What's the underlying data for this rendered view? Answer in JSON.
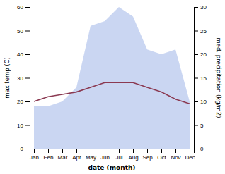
{
  "chart_data": {
    "type": "line",
    "categories": [
      "Jan",
      "Feb",
      "Mar",
      "Apr",
      "May",
      "Jun",
      "Jul",
      "Aug",
      "Sep",
      "Oct",
      "Nov",
      "Dec"
    ],
    "xlabel": "date (month)",
    "ylabel": "max temp (C)",
    "y2label": "med. precipitation (kg/m2)",
    "ylim": [
      0,
      60
    ],
    "yticks": [
      0,
      10,
      20,
      30,
      40,
      50,
      60
    ],
    "y2lim": [
      0,
      30
    ],
    "y2ticks": [
      0,
      5,
      10,
      15,
      20,
      25,
      30
    ],
    "grid": false,
    "series": [
      {
        "type": "area",
        "axis": "y2",
        "color": "#b8c8ee",
        "values": [
          9,
          9,
          10,
          13,
          26,
          27,
          30,
          28,
          21,
          20,
          21,
          10
        ]
      },
      {
        "type": "line",
        "color": "#8b3a52",
        "values": [
          20,
          22,
          23,
          24,
          26,
          28,
          28,
          28,
          26,
          24,
          21,
          19
        ]
      }
    ]
  }
}
